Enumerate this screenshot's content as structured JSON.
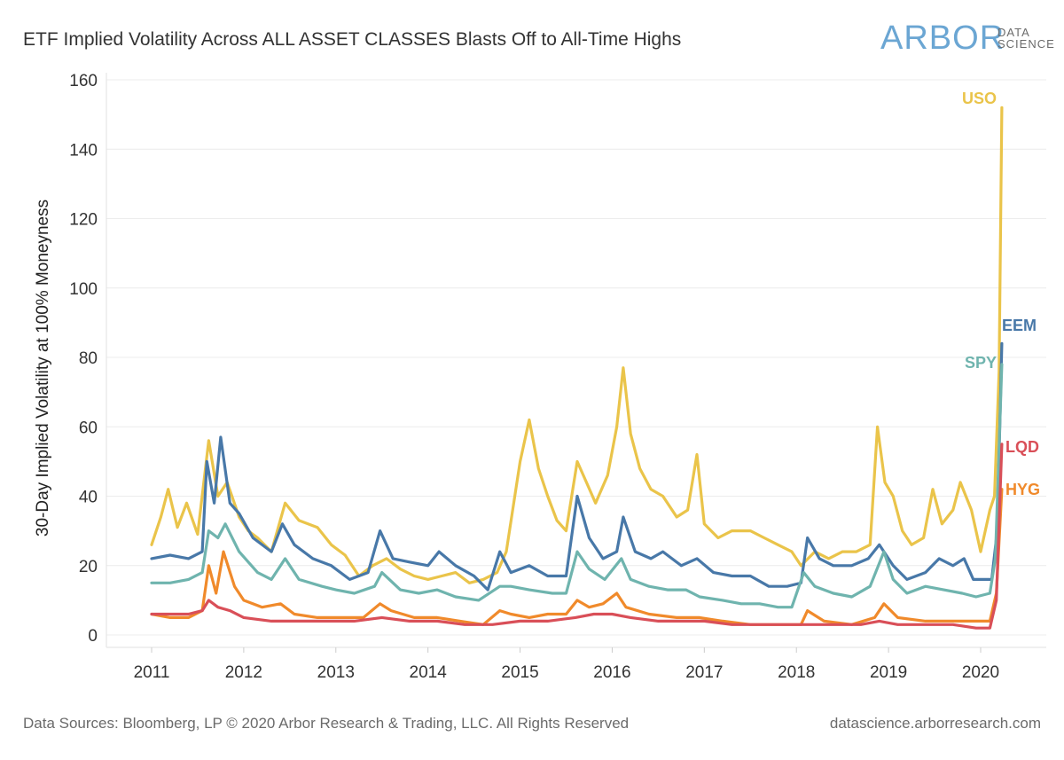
{
  "header": {
    "title": "ETF Implied Volatility Across ALL ASSET CLASSES Blasts Off to All-Time Highs",
    "logo_main": "ARBOR",
    "logo_sub1": "DATA",
    "logo_sub2": "SCIENCE"
  },
  "footer": {
    "source": "Data Sources: Bloomberg, LP © 2020 Arbor Research & Trading, LLC. All Rights Reserved",
    "url": "datascience.arborresearch.com"
  },
  "chart_data": {
    "type": "line",
    "title": "ETF Implied Volatility Across ALL ASSET CLASSES Blasts Off to All-Time Highs",
    "ylabel": "30-Day Implied Volatility at 100% Moneyness",
    "xlabel": "",
    "ylim": [
      0,
      160
    ],
    "xlim": [
      2010.5,
      2020.6
    ],
    "yticks": [
      0,
      20,
      40,
      60,
      80,
      100,
      120,
      140,
      160
    ],
    "xticks": [
      2011,
      2012,
      2013,
      2014,
      2015,
      2016,
      2017,
      2018,
      2019,
      2020
    ],
    "grid": true,
    "legend": "inline labels at line ends",
    "series": [
      {
        "name": "USO",
        "color": "#eac44a",
        "points": [
          [
            2011.0,
            26
          ],
          [
            2011.1,
            34
          ],
          [
            2011.18,
            42
          ],
          [
            2011.28,
            31
          ],
          [
            2011.38,
            38
          ],
          [
            2011.5,
            29
          ],
          [
            2011.62,
            56
          ],
          [
            2011.72,
            40
          ],
          [
            2011.82,
            44
          ],
          [
            2011.95,
            34
          ],
          [
            2012.05,
            30
          ],
          [
            2012.15,
            28
          ],
          [
            2012.3,
            24
          ],
          [
            2012.45,
            38
          ],
          [
            2012.6,
            33
          ],
          [
            2012.8,
            31
          ],
          [
            2012.95,
            26
          ],
          [
            2013.1,
            23
          ],
          [
            2013.25,
            17
          ],
          [
            2013.4,
            20
          ],
          [
            2013.55,
            22
          ],
          [
            2013.7,
            19
          ],
          [
            2013.85,
            17
          ],
          [
            2014.0,
            16
          ],
          [
            2014.15,
            17
          ],
          [
            2014.3,
            18
          ],
          [
            2014.45,
            15
          ],
          [
            2014.6,
            16
          ],
          [
            2014.75,
            18
          ],
          [
            2014.85,
            24
          ],
          [
            2015.0,
            50
          ],
          [
            2015.1,
            62
          ],
          [
            2015.2,
            48
          ],
          [
            2015.3,
            40
          ],
          [
            2015.4,
            33
          ],
          [
            2015.5,
            30
          ],
          [
            2015.62,
            50
          ],
          [
            2015.72,
            44
          ],
          [
            2015.82,
            38
          ],
          [
            2015.95,
            46
          ],
          [
            2016.05,
            60
          ],
          [
            2016.12,
            77
          ],
          [
            2016.2,
            58
          ],
          [
            2016.3,
            48
          ],
          [
            2016.42,
            42
          ],
          [
            2016.55,
            40
          ],
          [
            2016.7,
            34
          ],
          [
            2016.82,
            36
          ],
          [
            2016.92,
            52
          ],
          [
            2017.0,
            32
          ],
          [
            2017.15,
            28
          ],
          [
            2017.3,
            30
          ],
          [
            2017.5,
            30
          ],
          [
            2017.65,
            28
          ],
          [
            2017.8,
            26
          ],
          [
            2017.95,
            24
          ],
          [
            2018.05,
            20
          ],
          [
            2018.2,
            24
          ],
          [
            2018.35,
            22
          ],
          [
            2018.5,
            24
          ],
          [
            2018.65,
            24
          ],
          [
            2018.8,
            26
          ],
          [
            2018.88,
            60
          ],
          [
            2018.96,
            44
          ],
          [
            2019.05,
            40
          ],
          [
            2019.15,
            30
          ],
          [
            2019.25,
            26
          ],
          [
            2019.38,
            28
          ],
          [
            2019.48,
            42
          ],
          [
            2019.58,
            32
          ],
          [
            2019.7,
            36
          ],
          [
            2019.78,
            44
          ],
          [
            2019.9,
            36
          ],
          [
            2020.0,
            24
          ],
          [
            2020.1,
            36
          ],
          [
            2020.15,
            40
          ],
          [
            2020.2,
            76
          ],
          [
            2020.23,
            152
          ]
        ]
      },
      {
        "name": "EEM",
        "color": "#4878a8",
        "points": [
          [
            2011.0,
            22
          ],
          [
            2011.2,
            23
          ],
          [
            2011.4,
            22
          ],
          [
            2011.55,
            24
          ],
          [
            2011.6,
            50
          ],
          [
            2011.68,
            38
          ],
          [
            2011.75,
            57
          ],
          [
            2011.85,
            38
          ],
          [
            2011.95,
            35
          ],
          [
            2012.1,
            28
          ],
          [
            2012.3,
            24
          ],
          [
            2012.42,
            32
          ],
          [
            2012.55,
            26
          ],
          [
            2012.75,
            22
          ],
          [
            2012.95,
            20
          ],
          [
            2013.15,
            16
          ],
          [
            2013.35,
            18
          ],
          [
            2013.48,
            30
          ],
          [
            2013.62,
            22
          ],
          [
            2013.8,
            21
          ],
          [
            2014.0,
            20
          ],
          [
            2014.12,
            24
          ],
          [
            2014.3,
            20
          ],
          [
            2014.5,
            17
          ],
          [
            2014.65,
            13
          ],
          [
            2014.78,
            24
          ],
          [
            2014.9,
            18
          ],
          [
            2015.1,
            20
          ],
          [
            2015.3,
            17
          ],
          [
            2015.5,
            17
          ],
          [
            2015.62,
            40
          ],
          [
            2015.75,
            28
          ],
          [
            2015.9,
            22
          ],
          [
            2016.05,
            24
          ],
          [
            2016.12,
            34
          ],
          [
            2016.25,
            24
          ],
          [
            2016.42,
            22
          ],
          [
            2016.55,
            24
          ],
          [
            2016.75,
            20
          ],
          [
            2016.92,
            22
          ],
          [
            2017.1,
            18
          ],
          [
            2017.3,
            17
          ],
          [
            2017.5,
            17
          ],
          [
            2017.7,
            14
          ],
          [
            2017.9,
            14
          ],
          [
            2018.05,
            15
          ],
          [
            2018.12,
            28
          ],
          [
            2018.25,
            22
          ],
          [
            2018.4,
            20
          ],
          [
            2018.6,
            20
          ],
          [
            2018.78,
            22
          ],
          [
            2018.9,
            26
          ],
          [
            2019.05,
            20
          ],
          [
            2019.2,
            16
          ],
          [
            2019.4,
            18
          ],
          [
            2019.55,
            22
          ],
          [
            2019.7,
            20
          ],
          [
            2019.82,
            22
          ],
          [
            2019.92,
            16
          ],
          [
            2020.05,
            16
          ],
          [
            2020.12,
            16
          ],
          [
            2020.18,
            30
          ],
          [
            2020.23,
            84
          ]
        ]
      },
      {
        "name": "SPY",
        "color": "#6fb4ae",
        "points": [
          [
            2011.0,
            15
          ],
          [
            2011.2,
            15
          ],
          [
            2011.4,
            16
          ],
          [
            2011.55,
            18
          ],
          [
            2011.62,
            30
          ],
          [
            2011.72,
            28
          ],
          [
            2011.8,
            32
          ],
          [
            2011.95,
            24
          ],
          [
            2012.15,
            18
          ],
          [
            2012.3,
            16
          ],
          [
            2012.45,
            22
          ],
          [
            2012.6,
            16
          ],
          [
            2012.85,
            14
          ],
          [
            2013.0,
            13
          ],
          [
            2013.2,
            12
          ],
          [
            2013.42,
            14
          ],
          [
            2013.5,
            18
          ],
          [
            2013.7,
            13
          ],
          [
            2013.9,
            12
          ],
          [
            2014.1,
            13
          ],
          [
            2014.3,
            11
          ],
          [
            2014.55,
            10
          ],
          [
            2014.78,
            14
          ],
          [
            2014.9,
            14
          ],
          [
            2015.1,
            13
          ],
          [
            2015.35,
            12
          ],
          [
            2015.5,
            12
          ],
          [
            2015.62,
            24
          ],
          [
            2015.75,
            19
          ],
          [
            2015.92,
            16
          ],
          [
            2016.1,
            22
          ],
          [
            2016.2,
            16
          ],
          [
            2016.4,
            14
          ],
          [
            2016.6,
            13
          ],
          [
            2016.8,
            13
          ],
          [
            2016.95,
            11
          ],
          [
            2017.2,
            10
          ],
          [
            2017.4,
            9
          ],
          [
            2017.6,
            9
          ],
          [
            2017.8,
            8
          ],
          [
            2017.95,
            8
          ],
          [
            2018.08,
            18
          ],
          [
            2018.2,
            14
          ],
          [
            2018.4,
            12
          ],
          [
            2018.6,
            11
          ],
          [
            2018.8,
            14
          ],
          [
            2018.95,
            24
          ],
          [
            2019.05,
            16
          ],
          [
            2019.2,
            12
          ],
          [
            2019.4,
            14
          ],
          [
            2019.6,
            13
          ],
          [
            2019.8,
            12
          ],
          [
            2019.95,
            11
          ],
          [
            2020.1,
            12
          ],
          [
            2020.16,
            22
          ],
          [
            2020.23,
            78
          ]
        ]
      },
      {
        "name": "LQD",
        "color": "#d94f58",
        "points": [
          [
            2011.0,
            6
          ],
          [
            2011.2,
            6
          ],
          [
            2011.4,
            6
          ],
          [
            2011.55,
            7
          ],
          [
            2011.62,
            10
          ],
          [
            2011.72,
            8
          ],
          [
            2011.85,
            7
          ],
          [
            2012.0,
            5
          ],
          [
            2012.3,
            4
          ],
          [
            2012.6,
            4
          ],
          [
            2012.9,
            4
          ],
          [
            2013.2,
            4
          ],
          [
            2013.5,
            5
          ],
          [
            2013.8,
            4
          ],
          [
            2014.1,
            4
          ],
          [
            2014.4,
            3
          ],
          [
            2014.7,
            3
          ],
          [
            2015.0,
            4
          ],
          [
            2015.3,
            4
          ],
          [
            2015.6,
            5
          ],
          [
            2015.8,
            6
          ],
          [
            2016.0,
            6
          ],
          [
            2016.2,
            5
          ],
          [
            2016.5,
            4
          ],
          [
            2016.8,
            4
          ],
          [
            2017.0,
            4
          ],
          [
            2017.3,
            3
          ],
          [
            2017.6,
            3
          ],
          [
            2017.9,
            3
          ],
          [
            2018.1,
            3
          ],
          [
            2018.4,
            3
          ],
          [
            2018.7,
            3
          ],
          [
            2018.9,
            4
          ],
          [
            2019.1,
            3
          ],
          [
            2019.4,
            3
          ],
          [
            2019.7,
            3
          ],
          [
            2019.95,
            2
          ],
          [
            2020.1,
            2
          ],
          [
            2020.17,
            10
          ],
          [
            2020.23,
            55
          ]
        ]
      },
      {
        "name": "HYG",
        "color": "#f08a2b",
        "points": [
          [
            2011.0,
            6
          ],
          [
            2011.2,
            5
          ],
          [
            2011.4,
            5
          ],
          [
            2011.55,
            7
          ],
          [
            2011.62,
            20
          ],
          [
            2011.7,
            12
          ],
          [
            2011.78,
            24
          ],
          [
            2011.9,
            14
          ],
          [
            2012.0,
            10
          ],
          [
            2012.2,
            8
          ],
          [
            2012.4,
            9
          ],
          [
            2012.55,
            6
          ],
          [
            2012.8,
            5
          ],
          [
            2013.1,
            5
          ],
          [
            2013.3,
            5
          ],
          [
            2013.48,
            9
          ],
          [
            2013.6,
            7
          ],
          [
            2013.85,
            5
          ],
          [
            2014.1,
            5
          ],
          [
            2014.35,
            4
          ],
          [
            2014.6,
            3
          ],
          [
            2014.78,
            7
          ],
          [
            2014.9,
            6
          ],
          [
            2015.1,
            5
          ],
          [
            2015.3,
            6
          ],
          [
            2015.5,
            6
          ],
          [
            2015.62,
            10
          ],
          [
            2015.75,
            8
          ],
          [
            2015.9,
            9
          ],
          [
            2016.05,
            12
          ],
          [
            2016.15,
            8
          ],
          [
            2016.4,
            6
          ],
          [
            2016.7,
            5
          ],
          [
            2016.95,
            5
          ],
          [
            2017.2,
            4
          ],
          [
            2017.5,
            3
          ],
          [
            2017.8,
            3
          ],
          [
            2018.05,
            3
          ],
          [
            2018.12,
            7
          ],
          [
            2018.3,
            4
          ],
          [
            2018.6,
            3
          ],
          [
            2018.85,
            5
          ],
          [
            2018.95,
            9
          ],
          [
            2019.1,
            5
          ],
          [
            2019.4,
            4
          ],
          [
            2019.7,
            4
          ],
          [
            2019.95,
            4
          ],
          [
            2020.1,
            4
          ],
          [
            2020.17,
            12
          ],
          [
            2020.23,
            42
          ]
        ]
      }
    ]
  }
}
